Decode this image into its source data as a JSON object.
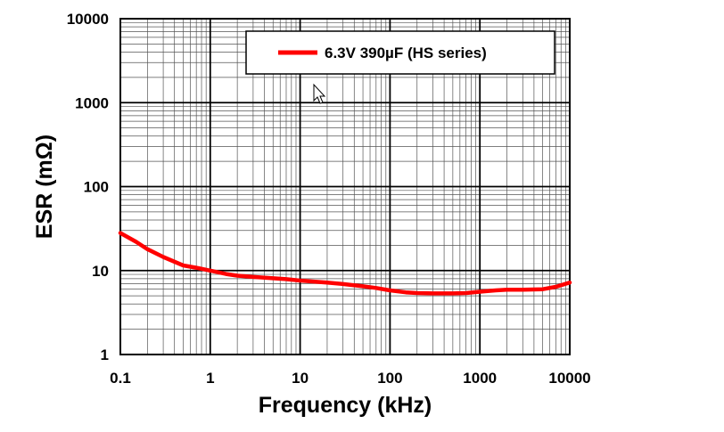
{
  "chart_data": {
    "type": "line",
    "title": "",
    "xlabel": "Frequency  (kHz)",
    "ylabel": "ESR  (mΩ)",
    "xscale": "log",
    "yscale": "log",
    "xlim": [
      0.1,
      10000
    ],
    "ylim": [
      1,
      10000
    ],
    "xticks": [
      "0.1",
      "1",
      "10",
      "100",
      "1000",
      "10000"
    ],
    "yticks": [
      "1",
      "10",
      "100",
      "1000",
      "10000"
    ],
    "grid": true,
    "legend_position": "top-right",
    "series": [
      {
        "name": "6.3V 390µF (HS series)",
        "color": "#ff0000",
        "x": [
          0.1,
          0.15,
          0.2,
          0.3,
          0.5,
          0.7,
          1,
          1.5,
          2,
          3,
          5,
          7,
          10,
          20,
          30,
          50,
          70,
          100,
          150,
          200,
          300,
          500,
          700,
          1000,
          1500,
          2000,
          3000,
          5000,
          7000,
          10000
        ],
        "y": [
          28,
          22,
          18,
          14.5,
          11.5,
          10.8,
          10,
          9.1,
          8.7,
          8.4,
          8.1,
          7.9,
          7.6,
          7.2,
          6.9,
          6.5,
          6.2,
          5.8,
          5.5,
          5.4,
          5.35,
          5.35,
          5.4,
          5.6,
          5.8,
          5.9,
          5.9,
          6.0,
          6.4,
          7.2
        ]
      }
    ]
  }
}
